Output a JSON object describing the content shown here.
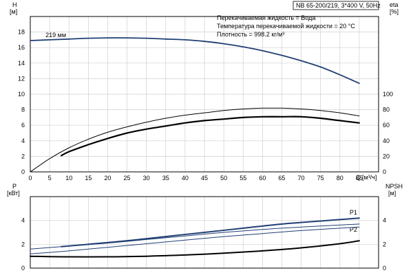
{
  "header": {
    "title": "NB 65-200/219, 3*400 V, 50Hz",
    "liquid": "Перекачиваемая жидкость = Вода",
    "temperature": "Температура перекачиваемой жидкости = 20 °C",
    "density": "Плотность = 998.2 кг/м³"
  },
  "axes": {
    "h_label": "H",
    "h_unit": "[м]",
    "eta_label": "eta",
    "eta_unit": "[%]",
    "q_label": "Q",
    "q_unit": "[м³/ч]",
    "p_label": "P",
    "p_unit": "[кВт]",
    "npsh_label": "NPSH",
    "npsh_unit": "[м]"
  },
  "chart_data": [
    {
      "type": "line",
      "x_range": [
        0,
        90
      ],
      "x_ticks": [
        0,
        5,
        10,
        15,
        20,
        25,
        30,
        35,
        40,
        45,
        50,
        55,
        60,
        65,
        70,
        75,
        80,
        85
      ],
      "left_axis": {
        "range": [
          0,
          20
        ],
        "ticks": [
          0,
          2,
          4,
          6,
          8,
          10,
          12,
          14,
          16,
          18
        ]
      },
      "right_axis": {
        "range": [
          0,
          200
        ],
        "ticks": [
          0,
          20,
          40,
          60,
          80,
          100
        ]
      },
      "grid": true,
      "series": [
        {
          "name": "219 мм",
          "axis": "left",
          "color": "#1f3e73",
          "x": [
            0,
            5,
            10,
            15,
            20,
            25,
            30,
            35,
            40,
            45,
            50,
            55,
            60,
            65,
            70,
            75,
            80,
            85
          ],
          "y": [
            16.9,
            17.0,
            17.1,
            17.2,
            17.25,
            17.25,
            17.2,
            17.1,
            17.0,
            16.8,
            16.5,
            16.1,
            15.6,
            15.0,
            14.3,
            13.5,
            12.5,
            11.4
          ]
        },
        {
          "axis": "right",
          "color": "#000000",
          "width": 1,
          "x": [
            0,
            5,
            10,
            15,
            20,
            25,
            30,
            35,
            40,
            45,
            50,
            55,
            60,
            65,
            70,
            75,
            80,
            85
          ],
          "y": [
            0,
            17,
            31,
            42,
            51,
            58,
            64,
            69,
            73,
            76,
            79,
            81,
            82,
            82,
            81,
            79,
            76,
            72
          ]
        },
        {
          "axis": "right",
          "color": "#000000",
          "width": 2.2,
          "x": [
            8,
            10,
            15,
            20,
            25,
            30,
            35,
            40,
            45,
            50,
            55,
            60,
            65,
            70,
            75,
            80,
            85
          ],
          "y": [
            21,
            26,
            35,
            43,
            50,
            55,
            59,
            63,
            66,
            68,
            70,
            71,
            71,
            71,
            69,
            66,
            63
          ]
        }
      ]
    },
    {
      "type": "line",
      "x_range": [
        0,
        90
      ],
      "left_axis": {
        "range": [
          0,
          6
        ],
        "ticks": [
          0,
          2,
          4
        ]
      },
      "right_axis": {
        "range": [
          0,
          6
        ],
        "ticks": [
          0,
          2,
          4
        ]
      },
      "grid": true,
      "series": [
        {
          "name": "P1",
          "axis": "left",
          "color": "#1f3e73",
          "width": 2,
          "x": [
            8,
            15,
            25,
            35,
            45,
            55,
            65,
            75,
            85
          ],
          "y": [
            1.8,
            2.0,
            2.3,
            2.65,
            3.0,
            3.35,
            3.7,
            3.95,
            4.2
          ]
        },
        {
          "name": "P2",
          "axis": "left",
          "color": "#1f3e73",
          "width": 1,
          "x": [
            0,
            10,
            20,
            30,
            40,
            50,
            60,
            70,
            85
          ],
          "y": [
            1.6,
            1.85,
            2.1,
            2.4,
            2.7,
            3.0,
            3.25,
            3.45,
            3.7
          ]
        },
        {
          "axis": "left",
          "color": "#1f3e73",
          "width": 1,
          "x": [
            0,
            10,
            20,
            30,
            40,
            50,
            60,
            70,
            85
          ],
          "y": [
            1.2,
            1.45,
            1.75,
            2.05,
            2.35,
            2.65,
            2.9,
            3.15,
            3.45
          ]
        },
        {
          "axis": "right",
          "color": "#000000",
          "width": 2,
          "x": [
            0,
            8,
            20,
            30,
            40,
            50,
            60,
            70,
            80,
            85
          ],
          "y": [
            1.0,
            0.95,
            0.95,
            1.0,
            1.1,
            1.25,
            1.45,
            1.7,
            2.05,
            2.3
          ]
        }
      ]
    }
  ]
}
